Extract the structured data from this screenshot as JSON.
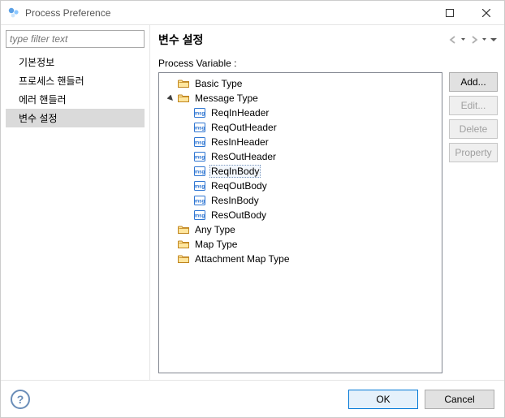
{
  "colors": {
    "window_border": "#cccccc",
    "text": "#000000",
    "muted_text": "#555555",
    "selected_bg": "#dadada",
    "tree_border": "#828790",
    "tree_selected_bg": "#f3f7fc",
    "tree_selected_border": "#7a98c0",
    "button_bg": "#e1e1e1",
    "button_border": "#adadad",
    "button_disabled_text": "#a0a0a0",
    "button_disabled_border": "#c6c6c6",
    "button_disabled_bg": "#efefef",
    "ok_border": "#0078d7",
    "ok_bg": "#e5f1fb",
    "help_ring": "#6a8db8",
    "folder_fill": "#ffe69e",
    "folder_stroke": "#c0851e",
    "msg_fill": "#ffffff",
    "msg_stroke": "#2f76d2",
    "msg_text": "#2f76d2"
  },
  "window": {
    "title": "Process Preference"
  },
  "sidebar": {
    "filter_placeholder": "type filter text",
    "items": [
      {
        "label": "기본정보",
        "selected": false
      },
      {
        "label": "프로세스 핸들러",
        "selected": false
      },
      {
        "label": "에러 핸들러",
        "selected": false
      },
      {
        "label": "변수 설정",
        "selected": true
      }
    ]
  },
  "main": {
    "title": "변수 설정",
    "tree_label": "Process Variable :",
    "tree": [
      {
        "label": "Basic Type",
        "icon": "folder",
        "depth": 0,
        "expander": "none",
        "selected": false
      },
      {
        "label": "Message Type",
        "icon": "folder",
        "depth": 0,
        "expander": "open",
        "selected": false
      },
      {
        "label": "ReqInHeader",
        "icon": "msg",
        "depth": 1,
        "expander": "none",
        "selected": false
      },
      {
        "label": "ReqOutHeader",
        "icon": "msg",
        "depth": 1,
        "expander": "none",
        "selected": false
      },
      {
        "label": "ResInHeader",
        "icon": "msg",
        "depth": 1,
        "expander": "none",
        "selected": false
      },
      {
        "label": "ResOutHeader",
        "icon": "msg",
        "depth": 1,
        "expander": "none",
        "selected": false
      },
      {
        "label": "ReqInBody",
        "icon": "msg",
        "depth": 1,
        "expander": "none",
        "selected": true
      },
      {
        "label": "ReqOutBody",
        "icon": "msg",
        "depth": 1,
        "expander": "none",
        "selected": false
      },
      {
        "label": "ResInBody",
        "icon": "msg",
        "depth": 1,
        "expander": "none",
        "selected": false
      },
      {
        "label": "ResOutBody",
        "icon": "msg",
        "depth": 1,
        "expander": "none",
        "selected": false
      },
      {
        "label": "Any Type",
        "icon": "folder",
        "depth": 0,
        "expander": "none",
        "selected": false
      },
      {
        "label": "Map Type",
        "icon": "folder",
        "depth": 0,
        "expander": "none",
        "selected": false
      },
      {
        "label": "Attachment Map Type",
        "icon": "folder",
        "depth": 0,
        "expander": "none",
        "selected": false
      }
    ],
    "buttons": {
      "add": "Add...",
      "edit": "Edit...",
      "delete": "Delete",
      "property": "Property"
    }
  },
  "footer": {
    "ok": "OK",
    "cancel": "Cancel"
  }
}
